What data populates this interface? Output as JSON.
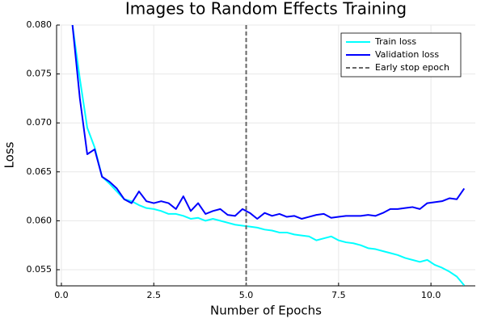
{
  "chart_data": {
    "type": "line",
    "title": "Images to Random Effects Training",
    "x_label": "Number of Epochs",
    "y_label": "Loss",
    "x": [
      0.3,
      0.5,
      0.7,
      0.9,
      1.1,
      1.3,
      1.5,
      1.7,
      1.9,
      2.1,
      2.3,
      2.5,
      2.7,
      2.9,
      3.1,
      3.3,
      3.5,
      3.7,
      3.9,
      4.1,
      4.3,
      4.5,
      4.7,
      4.9,
      5.1,
      5.3,
      5.5,
      5.7,
      5.9,
      6.1,
      6.3,
      6.5,
      6.7,
      6.9,
      7.1,
      7.3,
      7.5,
      7.7,
      7.9,
      8.1,
      8.3,
      8.5,
      8.7,
      8.9,
      9.1,
      9.3,
      9.5,
      9.7,
      9.9,
      10.1,
      10.3,
      10.5,
      10.7,
      10.9
    ],
    "series": [
      {
        "name": "Train loss",
        "color": "#00ffff",
        "values": [
          0.08,
          0.0745,
          0.0695,
          0.0675,
          0.0645,
          0.0638,
          0.063,
          0.0622,
          0.062,
          0.0616,
          0.0613,
          0.0612,
          0.061,
          0.0607,
          0.0607,
          0.0605,
          0.0602,
          0.0603,
          0.06,
          0.0602,
          0.06,
          0.0598,
          0.0596,
          0.0595,
          0.0594,
          0.0593,
          0.0591,
          0.059,
          0.0588,
          0.0588,
          0.0586,
          0.0585,
          0.0584,
          0.058,
          0.0582,
          0.0584,
          0.058,
          0.0578,
          0.0577,
          0.0575,
          0.0572,
          0.0571,
          0.0569,
          0.0567,
          0.0565,
          0.0562,
          0.056,
          0.0558,
          0.056,
          0.0555,
          0.0552,
          0.0548,
          0.0543,
          0.0534
        ]
      },
      {
        "name": "Validation loss",
        "color": "#0000ff",
        "values": [
          0.08,
          0.0725,
          0.0668,
          0.0673,
          0.0645,
          0.064,
          0.0633,
          0.0622,
          0.0618,
          0.063,
          0.062,
          0.0618,
          0.062,
          0.0618,
          0.0612,
          0.0625,
          0.061,
          0.0618,
          0.0607,
          0.061,
          0.0612,
          0.0606,
          0.0605,
          0.0612,
          0.0608,
          0.0602,
          0.0608,
          0.0605,
          0.0607,
          0.0604,
          0.0605,
          0.0602,
          0.0604,
          0.0606,
          0.0607,
          0.0603,
          0.0604,
          0.0605,
          0.0605,
          0.0605,
          0.0606,
          0.0605,
          0.0608,
          0.0612,
          0.0612,
          0.0613,
          0.0614,
          0.0612,
          0.0618,
          0.0619,
          0.062,
          0.0623,
          0.0622,
          0.0633
        ]
      }
    ],
    "vlines": [
      {
        "name": "Early stop epoch",
        "x": 5,
        "color": "#666666"
      }
    ],
    "xlim": [
      -0.13,
      11.2
    ],
    "ylim": [
      0.05335,
      0.08
    ],
    "xticks": [
      {
        "value": 0,
        "label": "0.0"
      },
      {
        "value": 2.5,
        "label": "2.5"
      },
      {
        "value": 5,
        "label": "5.0"
      },
      {
        "value": 7.5,
        "label": "7.5"
      },
      {
        "value": 10,
        "label": "10.0"
      }
    ],
    "yticks": [
      0.055,
      {
        "value": 0.06,
        "label": "0.060"
      },
      0.065,
      {
        "value": 0.07,
        "label": "0.070"
      },
      0.075,
      {
        "value": 0.08,
        "label": "0.080"
      }
    ],
    "grid": true,
    "legend": "top-right"
  }
}
